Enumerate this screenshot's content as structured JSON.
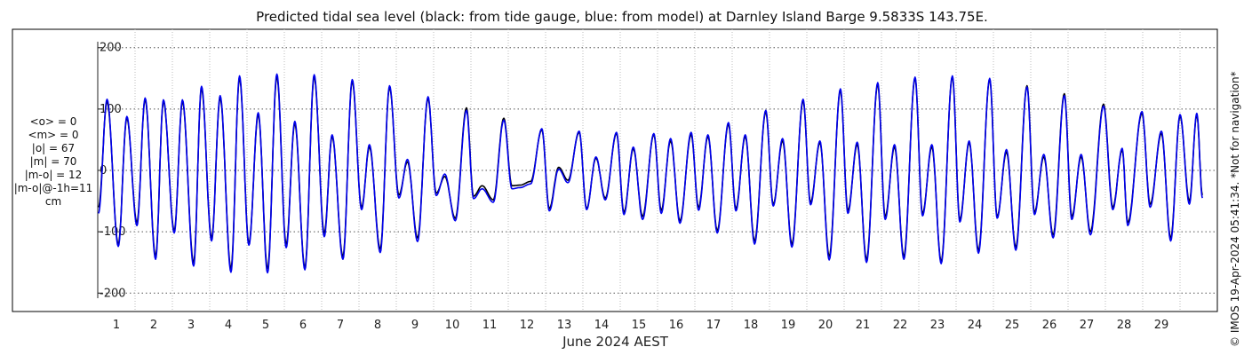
{
  "title": "Predicted tidal sea level (black: from tide gauge, blue: from model) at Darnley Island Barge 9.5833S 143.75E.",
  "xlabel": "June 2024 AEST",
  "copyright": "© IMOS 19-Apr-2024 05:41:34. *Not for navigation*",
  "stats": [
    "<o> = 0",
    "<m> = 0",
    "|o| = 67",
    "|m| = 70",
    "|m-o| = 12",
    "|m-o|@-1h=11",
    "cm"
  ],
  "colors": {
    "observed": "#000000",
    "model": "#0000ee",
    "grid": "#555555",
    "vgrid": "#bbbbbb"
  },
  "chart_data": {
    "type": "line",
    "title": "Predicted tidal sea level (black: from tide gauge, blue: from model) at Darnley Island Barge 9.5833S 143.75E.",
    "xlabel": "June 2024 AEST",
    "ylabel": "",
    "units": "cm",
    "xlim": [
      0,
      30
    ],
    "ylim": [
      -230,
      230
    ],
    "yticks": [
      -200,
      -100,
      0,
      100,
      200
    ],
    "xticks": [
      1,
      2,
      3,
      4,
      5,
      6,
      7,
      8,
      9,
      10,
      11,
      12,
      13,
      14,
      15,
      16,
      17,
      18,
      19,
      20,
      21,
      22,
      23,
      24,
      25,
      26,
      27,
      28,
      29
    ],
    "grid": true,
    "series": [
      {
        "name": "black: from tide gauge",
        "extrema": [
          [
            0.02,
            -60
          ],
          [
            0.25,
            112
          ],
          [
            0.55,
            -120
          ],
          [
            0.78,
            85
          ],
          [
            1.05,
            -85
          ],
          [
            1.27,
            115
          ],
          [
            1.55,
            -140
          ],
          [
            1.76,
            112
          ],
          [
            2.05,
            -98
          ],
          [
            2.27,
            112
          ],
          [
            2.57,
            -150
          ],
          [
            2.78,
            133
          ],
          [
            3.05,
            -110
          ],
          [
            3.28,
            118
          ],
          [
            3.57,
            -160
          ],
          [
            3.8,
            150
          ],
          [
            4.05,
            -118
          ],
          [
            4.3,
            90
          ],
          [
            4.55,
            -160
          ],
          [
            4.8,
            152
          ],
          [
            5.05,
            -120
          ],
          [
            5.28,
            76
          ],
          [
            5.55,
            -158
          ],
          [
            5.8,
            152
          ],
          [
            6.07,
            -102
          ],
          [
            6.28,
            55
          ],
          [
            6.57,
            -140
          ],
          [
            6.82,
            145
          ],
          [
            7.07,
            -60
          ],
          [
            7.28,
            38
          ],
          [
            7.57,
            -128
          ],
          [
            7.82,
            135
          ],
          [
            8.07,
            -40
          ],
          [
            8.3,
            14
          ],
          [
            8.57,
            -110
          ],
          [
            8.85,
            117
          ],
          [
            9.07,
            -37
          ],
          [
            9.3,
            -10
          ],
          [
            9.58,
            -78
          ],
          [
            9.88,
            102
          ],
          [
            10.07,
            -42
          ],
          [
            10.3,
            -25
          ],
          [
            10.6,
            -48
          ],
          [
            10.88,
            85
          ],
          [
            11.1,
            -25
          ],
          [
            11.32,
            -24
          ],
          [
            11.6,
            -18
          ],
          [
            11.9,
            66
          ],
          [
            12.1,
            -62
          ],
          [
            12.35,
            5
          ],
          [
            12.6,
            -16
          ],
          [
            12.9,
            62
          ],
          [
            13.1,
            -62
          ],
          [
            13.35,
            20
          ],
          [
            13.6,
            -45
          ],
          [
            13.9,
            60
          ],
          [
            14.1,
            -68
          ],
          [
            14.35,
            35
          ],
          [
            14.6,
            -75
          ],
          [
            14.9,
            58
          ],
          [
            15.1,
            -65
          ],
          [
            15.35,
            48
          ],
          [
            15.6,
            -82
          ],
          [
            15.9,
            58
          ],
          [
            16.1,
            -60
          ],
          [
            16.35,
            55
          ],
          [
            16.6,
            -98
          ],
          [
            16.9,
            75
          ],
          [
            17.1,
            -62
          ],
          [
            17.35,
            55
          ],
          [
            17.6,
            -115
          ],
          [
            17.9,
            95
          ],
          [
            18.1,
            -55
          ],
          [
            18.35,
            48
          ],
          [
            18.6,
            -120
          ],
          [
            18.9,
            113
          ],
          [
            19.1,
            -52
          ],
          [
            19.35,
            45
          ],
          [
            19.6,
            -140
          ],
          [
            19.9,
            130
          ],
          [
            20.1,
            -65
          ],
          [
            20.35,
            42
          ],
          [
            20.6,
            -145
          ],
          [
            20.9,
            140
          ],
          [
            21.1,
            -75
          ],
          [
            21.35,
            38
          ],
          [
            21.6,
            -140
          ],
          [
            21.9,
            150
          ],
          [
            22.1,
            -70
          ],
          [
            22.35,
            38
          ],
          [
            22.6,
            -148
          ],
          [
            22.9,
            152
          ],
          [
            23.1,
            -80
          ],
          [
            23.35,
            45
          ],
          [
            23.6,
            -130
          ],
          [
            23.9,
            148
          ],
          [
            24.1,
            -75
          ],
          [
            24.35,
            30
          ],
          [
            24.6,
            -125
          ],
          [
            24.9,
            138
          ],
          [
            25.1,
            -68
          ],
          [
            25.35,
            22
          ],
          [
            25.6,
            -105
          ],
          [
            25.9,
            125
          ],
          [
            26.1,
            -75
          ],
          [
            26.35,
            22
          ],
          [
            26.6,
            -100
          ],
          [
            26.95,
            108
          ],
          [
            27.2,
            -60
          ],
          [
            27.45,
            33
          ],
          [
            27.6,
            -85
          ],
          [
            27.98,
            93
          ],
          [
            28.2,
            -55
          ],
          [
            28.5,
            60
          ],
          [
            28.75,
            -110
          ],
          [
            29.0,
            88
          ],
          [
            29.25,
            -50
          ],
          [
            29.45,
            90
          ],
          [
            29.6,
            -40
          ]
        ]
      },
      {
        "name": "blue: from model",
        "extrema": [
          [
            0.02,
            -70
          ],
          [
            0.25,
            116
          ],
          [
            0.55,
            -124
          ],
          [
            0.78,
            88
          ],
          [
            1.05,
            -90
          ],
          [
            1.27,
            118
          ],
          [
            1.55,
            -145
          ],
          [
            1.76,
            115
          ],
          [
            2.05,
            -102
          ],
          [
            2.27,
            115
          ],
          [
            2.57,
            -156
          ],
          [
            2.78,
            137
          ],
          [
            3.05,
            -115
          ],
          [
            3.28,
            122
          ],
          [
            3.57,
            -166
          ],
          [
            3.8,
            154
          ],
          [
            4.05,
            -122
          ],
          [
            4.3,
            94
          ],
          [
            4.55,
            -167
          ],
          [
            4.8,
            157
          ],
          [
            5.05,
            -126
          ],
          [
            5.28,
            80
          ],
          [
            5.55,
            -162
          ],
          [
            5.8,
            156
          ],
          [
            6.07,
            -108
          ],
          [
            6.28,
            58
          ],
          [
            6.57,
            -145
          ],
          [
            6.82,
            148
          ],
          [
            7.07,
            -64
          ],
          [
            7.28,
            42
          ],
          [
            7.57,
            -134
          ],
          [
            7.82,
            138
          ],
          [
            8.07,
            -45
          ],
          [
            8.3,
            18
          ],
          [
            8.57,
            -116
          ],
          [
            8.85,
            120
          ],
          [
            9.07,
            -41
          ],
          [
            9.3,
            -6
          ],
          [
            9.58,
            -82
          ],
          [
            9.88,
            98
          ],
          [
            10.07,
            -46
          ],
          [
            10.3,
            -30
          ],
          [
            10.6,
            -52
          ],
          [
            10.88,
            82
          ],
          [
            11.1,
            -30
          ],
          [
            11.32,
            -28
          ],
          [
            11.6,
            -22
          ],
          [
            11.9,
            68
          ],
          [
            12.1,
            -66
          ],
          [
            12.35,
            2
          ],
          [
            12.6,
            -20
          ],
          [
            12.9,
            64
          ],
          [
            13.1,
            -64
          ],
          [
            13.35,
            22
          ],
          [
            13.6,
            -48
          ],
          [
            13.9,
            62
          ],
          [
            14.1,
            -72
          ],
          [
            14.35,
            38
          ],
          [
            14.6,
            -80
          ],
          [
            14.9,
            60
          ],
          [
            15.1,
            -70
          ],
          [
            15.35,
            52
          ],
          [
            15.6,
            -86
          ],
          [
            15.9,
            62
          ],
          [
            16.1,
            -65
          ],
          [
            16.35,
            58
          ],
          [
            16.6,
            -102
          ],
          [
            16.9,
            78
          ],
          [
            17.1,
            -66
          ],
          [
            17.35,
            58
          ],
          [
            17.6,
            -120
          ],
          [
            17.9,
            98
          ],
          [
            18.1,
            -58
          ],
          [
            18.35,
            52
          ],
          [
            18.6,
            -125
          ],
          [
            18.9,
            116
          ],
          [
            19.1,
            -56
          ],
          [
            19.35,
            48
          ],
          [
            19.6,
            -146
          ],
          [
            19.9,
            133
          ],
          [
            20.1,
            -70
          ],
          [
            20.35,
            46
          ],
          [
            20.6,
            -150
          ],
          [
            20.9,
            143
          ],
          [
            21.1,
            -80
          ],
          [
            21.35,
            42
          ],
          [
            21.6,
            -145
          ],
          [
            21.9,
            152
          ],
          [
            22.1,
            -74
          ],
          [
            22.35,
            42
          ],
          [
            22.6,
            -152
          ],
          [
            22.9,
            154
          ],
          [
            23.1,
            -84
          ],
          [
            23.35,
            48
          ],
          [
            23.6,
            -135
          ],
          [
            23.9,
            150
          ],
          [
            24.1,
            -78
          ],
          [
            24.35,
            34
          ],
          [
            24.6,
            -130
          ],
          [
            24.9,
            136
          ],
          [
            25.1,
            -72
          ],
          [
            25.35,
            26
          ],
          [
            25.6,
            -110
          ],
          [
            25.9,
            122
          ],
          [
            26.1,
            -80
          ],
          [
            26.35,
            26
          ],
          [
            26.6,
            -105
          ],
          [
            26.95,
            105
          ],
          [
            27.2,
            -64
          ],
          [
            27.45,
            36
          ],
          [
            27.6,
            -90
          ],
          [
            27.98,
            96
          ],
          [
            28.2,
            -60
          ],
          [
            28.5,
            64
          ],
          [
            28.75,
            -115
          ],
          [
            29.0,
            91
          ],
          [
            29.25,
            -55
          ],
          [
            29.45,
            93
          ],
          [
            29.6,
            -45
          ]
        ]
      }
    ]
  }
}
